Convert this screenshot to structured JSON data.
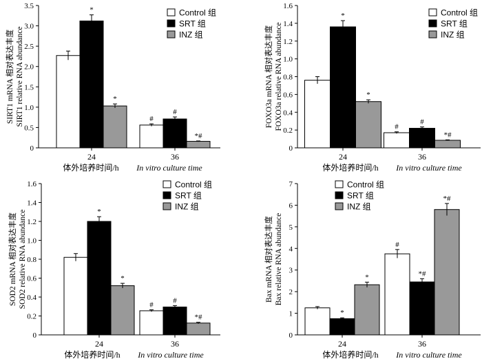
{
  "legend": [
    {
      "label": "Control 组",
      "color": "#ffffff"
    },
    {
      "label": "SRT 组",
      "color": "#000000"
    },
    {
      "label": "INZ 组",
      "color": "#999999"
    }
  ],
  "xlabel_cn": "体外培养时间/h",
  "xlabel_en": "In vitro culture time",
  "chart_data": [
    {
      "type": "bar",
      "ylabel_cn": "SIRT1 mRNA 相对表达丰度",
      "ylabel_en": "SIRT1 relative RNA abundance",
      "categories": [
        "24",
        "36"
      ],
      "ylim": [
        0,
        3.5
      ],
      "yticks": [
        "0",
        "0.5",
        "1.0",
        "1.5",
        "2.0",
        "2.5",
        "3.0",
        "3.5"
      ],
      "series": [
        {
          "name": "Control 组",
          "values": [
            2.27,
            0.56
          ],
          "errors": [
            0.11,
            0.03
          ],
          "marks": [
            "",
            "#"
          ]
        },
        {
          "name": "SRT 组",
          "values": [
            3.12,
            0.71
          ],
          "errors": [
            0.15,
            0.05
          ],
          "marks": [
            "*",
            "#"
          ]
        },
        {
          "name": "INZ 组",
          "values": [
            1.03,
            0.16
          ],
          "errors": [
            0.05,
            0.01
          ],
          "marks": [
            "*",
            "*#"
          ]
        }
      ]
    },
    {
      "type": "bar",
      "ylabel_cn": "FOXO3a mRNA 相对表达丰度",
      "ylabel_en": "FOXO3a relative RNA abundance",
      "categories": [
        "24",
        "36"
      ],
      "ylim": [
        0,
        1.6
      ],
      "yticks": [
        "0",
        "0.2",
        "0.4",
        "0.6",
        "0.8",
        "1.0",
        "1.2",
        "1.4",
        "1.6"
      ],
      "series": [
        {
          "name": "Control 组",
          "values": [
            0.76,
            0.17
          ],
          "errors": [
            0.04,
            0.01
          ],
          "marks": [
            "",
            "#"
          ]
        },
        {
          "name": "SRT 组",
          "values": [
            1.36,
            0.22
          ],
          "errors": [
            0.07,
            0.015
          ],
          "marks": [
            "*",
            "#"
          ]
        },
        {
          "name": "INZ 组",
          "values": [
            0.52,
            0.085
          ],
          "errors": [
            0.02,
            0.005
          ],
          "marks": [
            "*",
            "*#"
          ]
        }
      ]
    },
    {
      "type": "bar",
      "ylabel_cn": "SOD2 mRNA 相对表达丰度",
      "ylabel_en": "SOD2 relative RNA abundance",
      "categories": [
        "24",
        "36"
      ],
      "ylim": [
        0,
        1.6
      ],
      "yticks": [
        "0",
        "0.2",
        "0.4",
        "0.6",
        "0.8",
        "1.0",
        "1.2",
        "1.4",
        "1.6"
      ],
      "series": [
        {
          "name": "Control 组",
          "values": [
            0.82,
            0.255
          ],
          "errors": [
            0.04,
            0.01
          ],
          "marks": [
            "",
            "#"
          ]
        },
        {
          "name": "SRT 组",
          "values": [
            1.2,
            0.295
          ],
          "errors": [
            0.05,
            0.015
          ],
          "marks": [
            "*",
            "#"
          ]
        },
        {
          "name": "INZ 组",
          "values": [
            0.52,
            0.125
          ],
          "errors": [
            0.025,
            0.008
          ],
          "marks": [
            "*",
            "*#"
          ]
        }
      ]
    },
    {
      "type": "bar",
      "ylabel_cn": "Bax mRNA 相对表达丰度",
      "ylabel_en": "Bax relative RNA abundance",
      "categories": [
        "24",
        "36"
      ],
      "ylim": [
        0,
        7
      ],
      "yticks": [
        "0",
        "1",
        "2",
        "3",
        "4",
        "5",
        "6",
        "7"
      ],
      "series": [
        {
          "name": "Control 组",
          "values": [
            1.25,
            3.75
          ],
          "errors": [
            0.06,
            0.2
          ],
          "marks": [
            "",
            "#"
          ]
        },
        {
          "name": "SRT 组",
          "values": [
            0.75,
            2.45
          ],
          "errors": [
            0.04,
            0.15
          ],
          "marks": [
            "*",
            "*#"
          ]
        },
        {
          "name": "INZ 组",
          "values": [
            2.32,
            5.8
          ],
          "errors": [
            0.12,
            0.28
          ],
          "marks": [
            "*",
            "*#"
          ]
        }
      ]
    }
  ]
}
